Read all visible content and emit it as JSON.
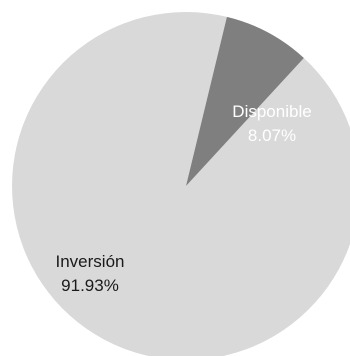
{
  "chart_data": {
    "type": "pie",
    "title": "",
    "slices": [
      {
        "label": "Inversión",
        "percent_label": "91.93%",
        "value": 91.93,
        "color": "#d9d9d9",
        "text_color": "#1a1a1a"
      },
      {
        "label": "Disponible",
        "percent_label": "8.07%",
        "value": 8.07,
        "color": "#7f7f7f",
        "text_color": "#ffffff"
      }
    ],
    "legend": "none"
  }
}
